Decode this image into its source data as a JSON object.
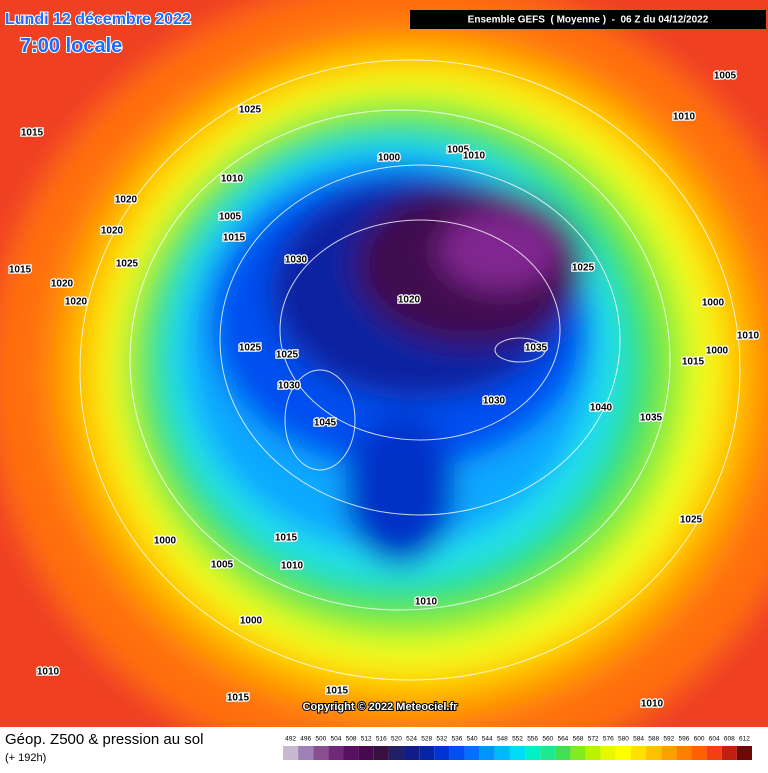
{
  "header": {
    "date": "Lundi 12 décembre 2022",
    "time": "7:00 locale",
    "banner": "Ensemble GEFS  ( Moyenne )  -  06 Z du 04/12/2022"
  },
  "isobars": [
    "1005",
    "1010",
    "1025",
    "1015",
    "1000",
    "1005",
    "1010",
    "1010",
    "1020",
    "1005",
    "1015",
    "1020",
    "1025",
    "1015",
    "1020",
    "1030",
    "1025",
    "1020",
    "1020",
    "1000",
    "1010",
    "1025",
    "1025",
    "1035",
    "1000",
    "1015",
    "1030",
    "1030",
    "1040",
    "1035",
    "1045",
    "1025",
    "1000",
    "1015",
    "1005",
    "1010",
    "1010",
    "1000",
    "1010",
    "1015",
    "1015",
    "1010"
  ],
  "copyright": "Copyright © 2022 Meteociel.fr",
  "footer": {
    "title": "Géop. Z500 & pression au sol",
    "subtitle": "(+ 192h)"
  },
  "scale": {
    "values": [
      492,
      496,
      500,
      504,
      508,
      512,
      516,
      520,
      524,
      528,
      532,
      536,
      540,
      544,
      548,
      552,
      556,
      560,
      564,
      568,
      572,
      576,
      580,
      584,
      588,
      592,
      596,
      600,
      604,
      608,
      612
    ],
    "colors": [
      "#c8b8d0",
      "#a080b8",
      "#885090",
      "#702878",
      "#581060",
      "#480850",
      "#381040",
      "#202068",
      "#101c88",
      "#0624a8",
      "#0034d0",
      "#0050f0",
      "#0070ff",
      "#0094ff",
      "#00b8ff",
      "#00dcf8",
      "#00f0c8",
      "#20e890",
      "#40e050",
      "#80ec20",
      "#b8f400",
      "#e8f800",
      "#ffff00",
      "#ffe000",
      "#ffc000",
      "#ffa000",
      "#ff8000",
      "#ff6000",
      "#f04010",
      "#c02010",
      "#700808"
    ]
  }
}
